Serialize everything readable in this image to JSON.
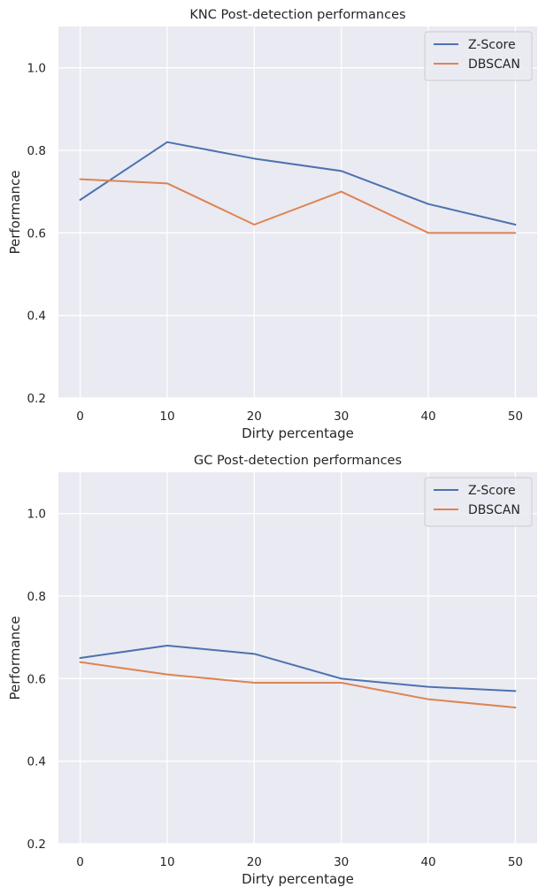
{
  "chart_data": [
    {
      "type": "line",
      "title": "KNC Post-detection performances",
      "xlabel": "Dirty percentage",
      "ylabel": "Performance",
      "x": [
        0,
        10,
        20,
        30,
        40,
        50
      ],
      "xticks": [
        "0",
        "10",
        "20",
        "30",
        "40",
        "50"
      ],
      "yticks": [
        "0.2",
        "0.4",
        "0.6",
        "0.8",
        "1.0"
      ],
      "xlim": [
        -2.5,
        52.5
      ],
      "ylim": [
        0.2,
        1.1
      ],
      "grid": true,
      "legend_position": "top-right",
      "series": [
        {
          "name": "Z-Score",
          "color": "#4c72b0",
          "values": [
            0.68,
            0.82,
            0.78,
            0.75,
            0.67,
            0.62
          ]
        },
        {
          "name": "DBSCAN",
          "color": "#dd8452",
          "values": [
            0.73,
            0.72,
            0.62,
            0.7,
            0.6,
            0.6
          ]
        }
      ]
    },
    {
      "type": "line",
      "title": "GC Post-detection performances",
      "xlabel": "Dirty percentage",
      "ylabel": "Performance",
      "x": [
        0,
        10,
        20,
        30,
        40,
        50
      ],
      "xticks": [
        "0",
        "10",
        "20",
        "30",
        "40",
        "50"
      ],
      "yticks": [
        "0.2",
        "0.4",
        "0.6",
        "0.8",
        "1.0"
      ],
      "xlim": [
        -2.5,
        52.5
      ],
      "ylim": [
        0.2,
        1.1
      ],
      "grid": true,
      "legend_position": "top-right",
      "series": [
        {
          "name": "Z-Score",
          "color": "#4c72b0",
          "values": [
            0.65,
            0.68,
            0.66,
            0.6,
            0.58,
            0.57
          ]
        },
        {
          "name": "DBSCAN",
          "color": "#dd8452",
          "values": [
            0.64,
            0.61,
            0.59,
            0.59,
            0.55,
            0.53
          ]
        }
      ]
    }
  ]
}
